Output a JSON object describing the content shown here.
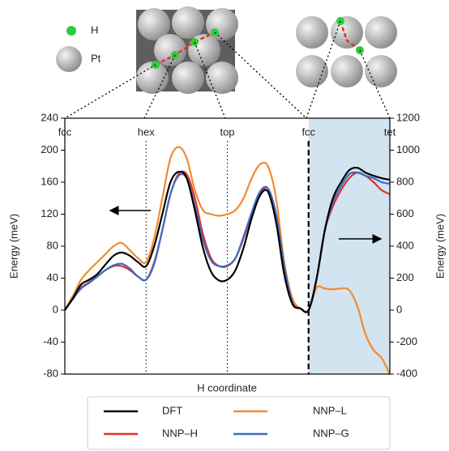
{
  "chart_data": {
    "type": "line",
    "x_label": "H coordinate",
    "y_label": "Energy (meV)",
    "y2_label": "Energy (meV)",
    "key": [
      "H",
      "Pt"
    ],
    "xlim": [
      0,
      4
    ],
    "xticks": [
      {
        "value": 0,
        "label": "fcc"
      },
      {
        "value": 1,
        "label": "hex"
      },
      {
        "value": 2,
        "label": "top"
      },
      {
        "value": 3,
        "label": "fcc"
      },
      {
        "value": 4,
        "label": "tet"
      }
    ],
    "ylim": [
      -80,
      240
    ],
    "yticks": [
      -80,
      -40,
      0,
      40,
      80,
      120,
      160,
      200,
      240
    ],
    "y2lim": [
      -400,
      1200
    ],
    "y2ticks": [
      -400,
      -200,
      0,
      200,
      400,
      600,
      800,
      1000,
      1200
    ],
    "shaded_x": [
      3,
      4
    ],
    "x": [
      0,
      0.1,
      0.2,
      0.3,
      0.4,
      0.5,
      0.6,
      0.7,
      0.8,
      0.9,
      1,
      1.1,
      1.2,
      1.3,
      1.4,
      1.5,
      1.6,
      1.7,
      1.8,
      1.9,
      2,
      2.1,
      2.2,
      2.3,
      2.4,
      2.5,
      2.6,
      2.7,
      2.8,
      2.9,
      3,
      3.1,
      3.2,
      3.3,
      3.4,
      3.5,
      3.6,
      3.7,
      3.8,
      3.9,
      4
    ],
    "series": [
      {
        "name": "NNP–L",
        "color": "#f28a2e",
        "values": [
          0,
          18,
          38,
          50,
          60,
          70,
          80,
          84,
          75,
          65,
          60,
          90,
          140,
          190,
          204,
          190,
          150,
          125,
          120,
          118,
          120,
          125,
          140,
          165,
          182,
          180,
          140,
          60,
          15,
          2,
          0,
          28,
          27,
          26,
          27,
          25,
          5,
          -30,
          -50,
          -60,
          -80
        ]
      },
      {
        "name": "NNP–H",
        "color": "#e0302f",
        "values": [
          0,
          15,
          28,
          35,
          42,
          50,
          55,
          55,
          50,
          42,
          38,
          60,
          100,
          145,
          170,
          170,
          140,
          95,
          65,
          55,
          55,
          65,
          90,
          120,
          145,
          152,
          120,
          55,
          10,
          2,
          0,
          40,
          100,
          130,
          150,
          165,
          172,
          168,
          160,
          150,
          145
        ]
      },
      {
        "name": "NNP–G",
        "color": "#3a6bc4",
        "values": [
          0,
          14,
          27,
          34,
          42,
          50,
          56,
          58,
          52,
          42,
          38,
          58,
          100,
          145,
          168,
          165,
          130,
          88,
          62,
          55,
          56,
          65,
          92,
          122,
          148,
          152,
          120,
          55,
          10,
          2,
          0,
          40,
          100,
          135,
          155,
          170,
          172,
          168,
          165,
          160,
          158
        ]
      },
      {
        "name": "DFT",
        "color": "#000000",
        "values": [
          0,
          15,
          32,
          38,
          45,
          57,
          68,
          72,
          68,
          60,
          55,
          80,
          120,
          160,
          173,
          165,
          125,
          78,
          48,
          37,
          38,
          50,
          78,
          115,
          143,
          148,
          110,
          45,
          8,
          2,
          0,
          40,
          100,
          140,
          160,
          175,
          178,
          172,
          168,
          165,
          163
        ]
      }
    ],
    "legend_order": [
      3,
      0,
      1,
      2
    ]
  }
}
